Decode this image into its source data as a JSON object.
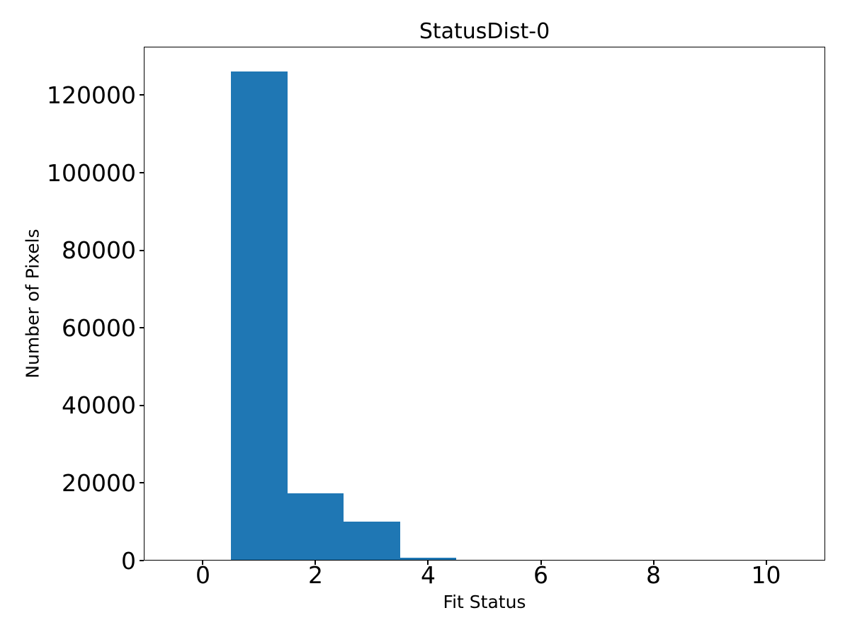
{
  "figure": {
    "title": "StatusDist-0",
    "xlabel": "Fit Status",
    "ylabel": "Number of Pixels"
  },
  "chart_data": {
    "type": "bar",
    "subtype": "histogram",
    "title": "StatusDist-0",
    "xlabel": "Fit Status",
    "ylabel": "Number of Pixels",
    "bin_edges": [
      -0.5,
      0.5,
      1.5,
      2.5,
      3.5,
      4.5,
      5.5,
      6.5,
      7.5,
      8.5,
      9.5,
      10.5
    ],
    "bin_centers": [
      0,
      1,
      2,
      3,
      4,
      5,
      6,
      7,
      8,
      9,
      10
    ],
    "counts": [
      0,
      126200,
      17400,
      10000,
      650,
      0,
      0,
      0,
      0,
      0,
      0
    ],
    "xlim": [
      -1.05,
      11.05
    ],
    "ylim": [
      0,
      132500
    ],
    "xticks": [
      0,
      2,
      4,
      6,
      8,
      10
    ],
    "xtick_labels": [
      "0",
      "2",
      "4",
      "6",
      "8",
      "10"
    ],
    "yticks": [
      0,
      20000,
      40000,
      60000,
      80000,
      100000,
      120000
    ],
    "ytick_labels": [
      "0",
      "20000",
      "40000",
      "60000",
      "80000",
      "100000",
      "120000"
    ],
    "bar_color": "#1f77b4",
    "text_color": "#000000",
    "background_color": "#ffffff",
    "grid": false,
    "legend": false
  }
}
